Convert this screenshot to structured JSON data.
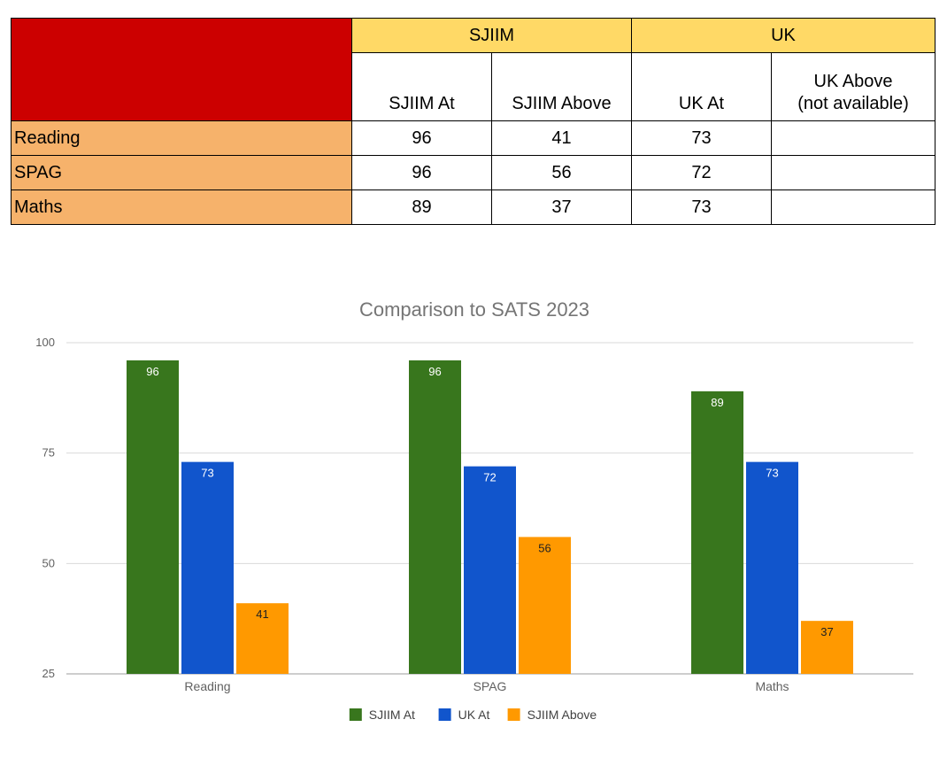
{
  "table": {
    "groups": [
      "SJIIM",
      "UK"
    ],
    "columns": [
      "SJIIM At",
      "SJIIM Above",
      "UK At",
      "UK Above\n(not available)"
    ],
    "rows": [
      {
        "label": "Reading",
        "values": [
          "96",
          "41",
          "73",
          ""
        ]
      },
      {
        "label": "SPAG",
        "values": [
          "96",
          "56",
          "72",
          ""
        ]
      },
      {
        "label": "Maths",
        "values": [
          "89",
          "37",
          "73",
          ""
        ]
      }
    ],
    "colors": {
      "corner": "#cc0000",
      "group_header": "#ffd966",
      "row_label": "#f6b26b"
    }
  },
  "chart_data": {
    "type": "bar",
    "title": "Comparison to SATS 2023",
    "categories": [
      "Reading",
      "SPAG",
      "Maths"
    ],
    "series": [
      {
        "name": "SJIIM At",
        "values": [
          96,
          96,
          89
        ],
        "color": "#38761d"
      },
      {
        "name": "UK At",
        "values": [
          73,
          72,
          73
        ],
        "color": "#1155cc"
      },
      {
        "name": "SJIIM Above",
        "values": [
          41,
          56,
          37
        ],
        "color": "#ff9900"
      }
    ],
    "ylim": [
      25,
      100
    ],
    "yticks": [
      25,
      50,
      75,
      100
    ],
    "xlabel": "",
    "ylabel": "",
    "grid": true,
    "legend": "bottom",
    "data_labels": true
  }
}
